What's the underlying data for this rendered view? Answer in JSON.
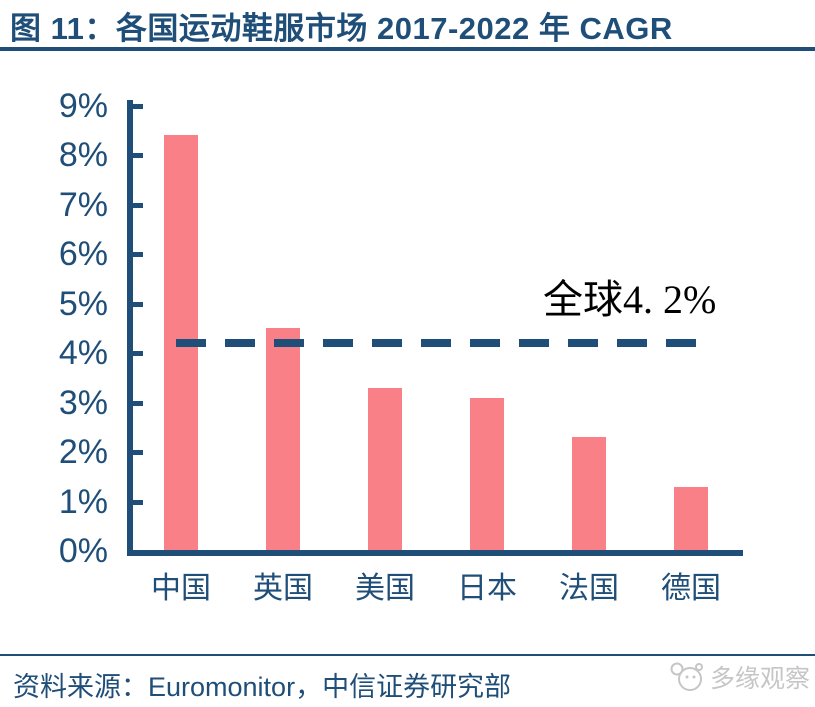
{
  "title": "图 11：各国运动鞋服市场 2017-2022 年 CAGR",
  "colors": {
    "navy": "#1F4E79",
    "bar": "#FA8087",
    "annotation": "#000000",
    "watermark": "#C6C6C6"
  },
  "chart_data": {
    "type": "bar",
    "title": "各国运动鞋服市场 2017-2022 年 CAGR",
    "categories": [
      "中国",
      "英国",
      "美国",
      "日本",
      "法国",
      "德国"
    ],
    "values": [
      8.4,
      4.5,
      3.3,
      3.1,
      2.3,
      1.3
    ],
    "unit": "%",
    "xlabel": "",
    "ylabel": "",
    "ylim": [
      0,
      9
    ],
    "ytick_step": 1,
    "ytick_labels": [
      "9%",
      "8%",
      "7%",
      "6%",
      "5%",
      "4%",
      "3%",
      "2%",
      "1%",
      "0%"
    ],
    "grid": false,
    "legend": "none",
    "bar_color": "#FA8087",
    "reference_line": {
      "value": 4.2,
      "label": "全球4. 2%",
      "style": "dashed",
      "color": "#1F4E79"
    }
  },
  "footer": {
    "source": "资料来源：Euromonitor，中信证券研究部",
    "watermark": "多缘观察"
  }
}
